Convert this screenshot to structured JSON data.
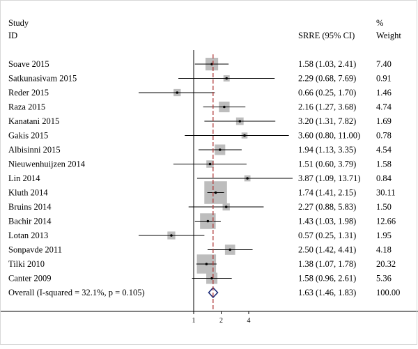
{
  "chart_data": {
    "type": "forest",
    "header": {
      "study": "Study",
      "id": "ID",
      "effect": "SRRE (95% CI)",
      "pct": "%",
      "weight": "Weight"
    },
    "xscale": "log",
    "xticks": [
      1,
      2,
      4
    ],
    "xlim_log2": [
      -3.0,
      4.0
    ],
    "null_value": 1,
    "pooled_value": 1.63,
    "studies": [
      {
        "label": "Soave 2015",
        "est": 1.58,
        "lo": 1.03,
        "hi": 2.41,
        "ci_text": "1.58 (1.03, 2.41)",
        "weight": 7.4,
        "weight_text": "7.40"
      },
      {
        "label": "Satkunasivam 2015",
        "est": 2.29,
        "lo": 0.68,
        "hi": 7.69,
        "ci_text": "2.29 (0.68, 7.69)",
        "weight": 0.91,
        "weight_text": "0.91"
      },
      {
        "label": "Reder 2015",
        "est": 0.66,
        "lo": 0.25,
        "hi": 1.7,
        "ci_text": "0.66 (0.25, 1.70)",
        "weight": 1.46,
        "weight_text": "1.46"
      },
      {
        "label": "Raza 2015",
        "est": 2.16,
        "lo": 1.27,
        "hi": 3.68,
        "ci_text": "2.16 (1.27, 3.68)",
        "weight": 4.74,
        "weight_text": "4.74"
      },
      {
        "label": "Kanatani 2015",
        "est": 3.2,
        "lo": 1.31,
        "hi": 7.82,
        "ci_text": "3.20 (1.31, 7.82)",
        "weight": 1.69,
        "weight_text": "1.69"
      },
      {
        "label": "Gakis 2015",
        "est": 3.6,
        "lo": 0.8,
        "hi": 11.0,
        "ci_text": "3.60 (0.80, 11.00)",
        "weight": 0.78,
        "weight_text": "0.78"
      },
      {
        "label": "Albisinni 2015",
        "est": 1.94,
        "lo": 1.13,
        "hi": 3.35,
        "ci_text": "1.94 (1.13, 3.35)",
        "weight": 4.54,
        "weight_text": "4.54"
      },
      {
        "label": "Nieuwenhuijzen 2014",
        "est": 1.51,
        "lo": 0.6,
        "hi": 3.79,
        "ci_text": "1.51 (0.60, 3.79)",
        "weight": 1.58,
        "weight_text": "1.58"
      },
      {
        "label": "Lin 2014",
        "est": 3.87,
        "lo": 1.09,
        "hi": 13.71,
        "ci_text": "3.87 (1.09, 13.71)",
        "weight": 0.84,
        "weight_text": "0.84"
      },
      {
        "label": "Kluth 2014",
        "est": 1.74,
        "lo": 1.41,
        "hi": 2.15,
        "ci_text": "1.74 (1.41, 2.15)",
        "weight": 30.11,
        "weight_text": "30.11"
      },
      {
        "label": "Bruins 2014",
        "est": 2.27,
        "lo": 0.88,
        "hi": 5.83,
        "ci_text": "2.27 (0.88, 5.83)",
        "weight": 1.5,
        "weight_text": "1.50"
      },
      {
        "label": "Bachir 2014",
        "est": 1.43,
        "lo": 1.03,
        "hi": 1.98,
        "ci_text": "1.43 (1.03, 1.98)",
        "weight": 12.66,
        "weight_text": "12.66"
      },
      {
        "label": "Lotan 2013",
        "est": 0.57,
        "lo": 0.25,
        "hi": 1.31,
        "ci_text": "0.57 (0.25, 1.31)",
        "weight": 1.95,
        "weight_text": "1.95"
      },
      {
        "label": "Sonpavde 2011",
        "est": 2.5,
        "lo": 1.42,
        "hi": 4.41,
        "ci_text": "2.50 (1.42, 4.41)",
        "weight": 4.18,
        "weight_text": "4.18"
      },
      {
        "label": "Tilki 2010",
        "est": 1.38,
        "lo": 1.07,
        "hi": 1.78,
        "ci_text": "1.38 (1.07, 1.78)",
        "weight": 20.32,
        "weight_text": "20.32"
      },
      {
        "label": "Canter 2009",
        "est": 1.58,
        "lo": 0.96,
        "hi": 2.61,
        "ci_text": "1.58 (0.96, 2.61)",
        "weight": 5.36,
        "weight_text": "5.36"
      }
    ],
    "overall": {
      "label": "Overall  (I-squared = 32.1%, p = 0.105)",
      "est": 1.63,
      "lo": 1.46,
      "hi": 1.83,
      "ci_text": "1.63 (1.46, 1.83)",
      "weight_text": "100.00"
    },
    "colors": {
      "box": "#bdbdbd",
      "line": "#000000",
      "pooled_line": "#b03a3a",
      "diamond": "#1a2a78",
      "axis": "#000000"
    }
  }
}
